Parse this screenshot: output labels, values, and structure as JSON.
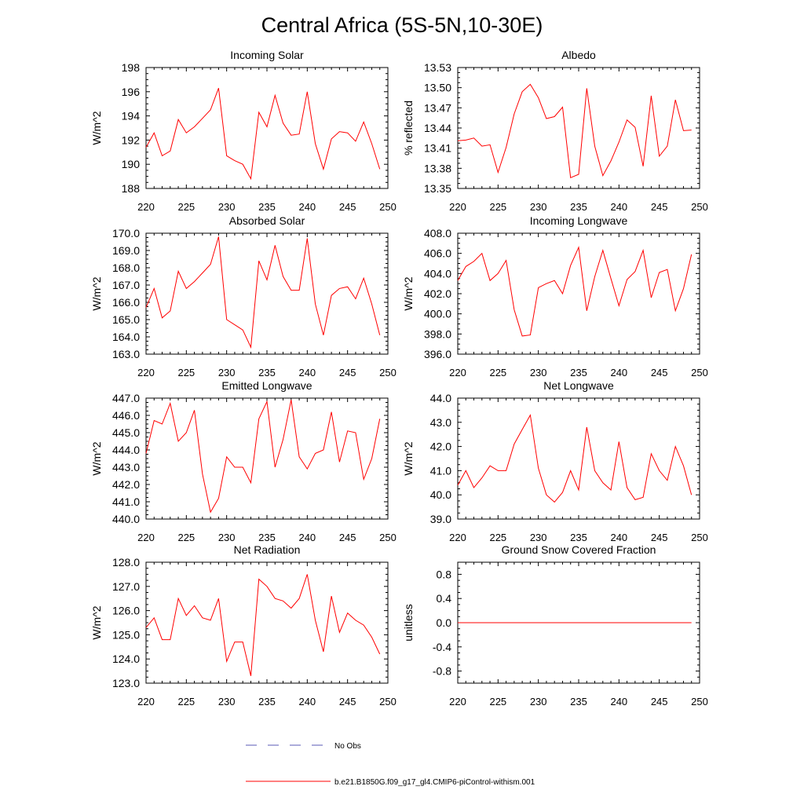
{
  "figure": {
    "title": "Central Africa (5S-5N,10-30E)",
    "line_color": "#ff0000",
    "obs_color": "#5a5ab4"
  },
  "legend": {
    "obs_label": "No Obs",
    "model_label": "b.e21.B1850G.f09_g17_gl4.CMIP6-piControl-withism.001"
  },
  "chart_data": [
    {
      "type": "line",
      "title": "Incoming Solar",
      "xlabel": "",
      "ylabel": "W/m^2",
      "xlim": [
        220,
        250
      ],
      "ylim": [
        188,
        198
      ],
      "x_ticks": [
        "220",
        "225",
        "230",
        "235",
        "240",
        "245",
        "250"
      ],
      "y_ticks": [
        "188",
        "190",
        "192",
        "194",
        "196",
        "198"
      ],
      "x": [
        220,
        221,
        222,
        223,
        224,
        225,
        226,
        227,
        228,
        229,
        230,
        231,
        232,
        233,
        234,
        235,
        236,
        237,
        238,
        239,
        240,
        241,
        242,
        243,
        244,
        245,
        246,
        247,
        248,
        249
      ],
      "series": [
        {
          "name": "b.e21.B1850G.f09_g17_gl4.CMIP6-piControl-withism.001",
          "values": [
            191.4,
            192.6,
            190.7,
            191.1,
            193.7,
            192.6,
            193.1,
            193.8,
            194.5,
            196.3,
            190.7,
            190.3,
            190.0,
            188.8,
            194.3,
            193.1,
            195.7,
            193.4,
            192.4,
            192.5,
            196.0,
            191.7,
            189.6,
            192.1,
            192.7,
            192.6,
            191.9,
            193.5,
            191.7,
            189.6
          ]
        }
      ]
    },
    {
      "type": "line",
      "title": "Albedo",
      "xlabel": "",
      "ylabel": "% reflected",
      "xlim": [
        220,
        250
      ],
      "ylim": [
        13.35,
        13.53
      ],
      "x_ticks": [
        "220",
        "225",
        "230",
        "235",
        "240",
        "245",
        "250"
      ],
      "y_ticks": [
        "13.35",
        "13.38",
        "13.41",
        "13.44",
        "13.47",
        "13.50",
        "13.53"
      ],
      "x": [
        220,
        221,
        222,
        223,
        224,
        225,
        226,
        227,
        228,
        229,
        230,
        231,
        232,
        233,
        234,
        235,
        236,
        237,
        238,
        239,
        240,
        241,
        242,
        243,
        244,
        245,
        246,
        247,
        248,
        249
      ],
      "series": [
        {
          "name": "b.e21.B1850G.f09_g17_gl4.CMIP6-piControl-withism.001",
          "values": [
            13.421,
            13.422,
            13.425,
            13.413,
            13.415,
            13.374,
            13.411,
            13.461,
            13.494,
            13.505,
            13.485,
            13.454,
            13.457,
            13.471,
            13.366,
            13.371,
            13.499,
            13.413,
            13.369,
            13.391,
            13.419,
            13.452,
            13.441,
            13.383,
            13.488,
            13.398,
            13.413,
            13.482,
            13.436,
            13.437
          ]
        }
      ]
    },
    {
      "type": "line",
      "title": "Absorbed Solar",
      "xlabel": "",
      "ylabel": "W/m^2",
      "xlim": [
        220,
        250
      ],
      "ylim": [
        163,
        170
      ],
      "x_ticks": [
        "220",
        "225",
        "230",
        "235",
        "240",
        "245",
        "250"
      ],
      "y_ticks": [
        "163.0",
        "164.0",
        "165.0",
        "166.0",
        "167.0",
        "168.0",
        "169.0",
        "170.0"
      ],
      "x": [
        220,
        221,
        222,
        223,
        224,
        225,
        226,
        227,
        228,
        229,
        230,
        231,
        232,
        233,
        234,
        235,
        236,
        237,
        238,
        239,
        240,
        241,
        242,
        243,
        244,
        245,
        246,
        247,
        248,
        249
      ],
      "series": [
        {
          "name": "b.e21.B1850G.f09_g17_gl4.CMIP6-piControl-withism.001",
          "values": [
            165.7,
            166.8,
            165.1,
            165.5,
            167.8,
            166.8,
            167.2,
            167.7,
            168.2,
            169.8,
            165.0,
            164.7,
            164.4,
            163.4,
            168.4,
            167.3,
            169.3,
            167.5,
            166.7,
            166.7,
            169.7,
            165.9,
            164.1,
            166.4,
            166.8,
            166.9,
            166.2,
            167.4,
            165.9,
            164.1
          ]
        }
      ]
    },
    {
      "type": "line",
      "title": "Incoming Longwave",
      "xlabel": "",
      "ylabel": "W/m^2",
      "xlim": [
        220,
        250
      ],
      "ylim": [
        396,
        408
      ],
      "x_ticks": [
        "220",
        "225",
        "230",
        "235",
        "240",
        "245",
        "250"
      ],
      "y_ticks": [
        "396.0",
        "398.0",
        "400.0",
        "402.0",
        "404.0",
        "406.0",
        "408.0"
      ],
      "x": [
        220,
        221,
        222,
        223,
        224,
        225,
        226,
        227,
        228,
        229,
        230,
        231,
        232,
        233,
        234,
        235,
        236,
        237,
        238,
        239,
        240,
        241,
        242,
        243,
        244,
        245,
        246,
        247,
        248,
        249
      ],
      "series": [
        {
          "name": "b.e21.B1850G.f09_g17_gl4.CMIP6-piControl-withism.001",
          "values": [
            403.3,
            404.7,
            405.2,
            406.0,
            403.3,
            404.0,
            405.3,
            400.4,
            397.8,
            397.9,
            402.6,
            403.0,
            403.3,
            402.0,
            404.8,
            406.6,
            400.3,
            403.7,
            406.3,
            403.5,
            400.8,
            403.4,
            404.2,
            406.3,
            401.6,
            404.1,
            404.4,
            400.3,
            402.5,
            405.9
          ]
        }
      ]
    },
    {
      "type": "line",
      "title": "Emitted Longwave",
      "xlabel": "",
      "ylabel": "W/m^2",
      "xlim": [
        220,
        250
      ],
      "ylim": [
        440,
        447
      ],
      "x_ticks": [
        "220",
        "225",
        "230",
        "235",
        "240",
        "245",
        "250"
      ],
      "y_ticks": [
        "440.0",
        "441.0",
        "442.0",
        "443.0",
        "444.0",
        "445.0",
        "446.0",
        "447.0"
      ],
      "x": [
        220,
        221,
        222,
        223,
        224,
        225,
        226,
        227,
        228,
        229,
        230,
        231,
        232,
        233,
        234,
        235,
        236,
        237,
        238,
        239,
        240,
        241,
        242,
        243,
        244,
        245,
        246,
        247,
        248,
        249
      ],
      "series": [
        {
          "name": "b.e21.B1850G.f09_g17_gl4.CMIP6-piControl-withism.001",
          "values": [
            443.8,
            445.7,
            445.5,
            446.7,
            444.5,
            445.0,
            446.3,
            442.6,
            440.4,
            441.2,
            443.6,
            443.0,
            443.0,
            442.1,
            445.8,
            446.8,
            443.0,
            444.6,
            446.9,
            443.6,
            442.9,
            443.8,
            444.0,
            446.2,
            443.3,
            445.1,
            445.0,
            442.3,
            443.5,
            445.8
          ]
        }
      ]
    },
    {
      "type": "line",
      "title": "Net Longwave",
      "xlabel": "",
      "ylabel": "W/m^2",
      "xlim": [
        220,
        250
      ],
      "ylim": [
        39,
        44
      ],
      "x_ticks": [
        "220",
        "225",
        "230",
        "235",
        "240",
        "245",
        "250"
      ],
      "y_ticks": [
        "39.0",
        "40.0",
        "41.0",
        "42.0",
        "43.0",
        "44.0"
      ],
      "x": [
        220,
        221,
        222,
        223,
        224,
        225,
        226,
        227,
        228,
        229,
        230,
        231,
        232,
        233,
        234,
        235,
        236,
        237,
        238,
        239,
        240,
        241,
        242,
        243,
        244,
        245,
        246,
        247,
        248,
        249
      ],
      "series": [
        {
          "name": "b.e21.B1850G.f09_g17_gl4.CMIP6-piControl-withism.001",
          "values": [
            40.4,
            41.0,
            40.3,
            40.7,
            41.2,
            41.0,
            41.0,
            42.1,
            42.7,
            43.3,
            41.1,
            40.0,
            39.7,
            40.1,
            41.0,
            40.2,
            42.8,
            41.0,
            40.5,
            40.2,
            42.2,
            40.3,
            39.8,
            39.9,
            41.7,
            41.0,
            40.6,
            42.0,
            41.2,
            40.0
          ]
        }
      ]
    },
    {
      "type": "line",
      "title": "Net Radiation",
      "xlabel": "",
      "ylabel": "W/m^2",
      "xlim": [
        220,
        250
      ],
      "ylim": [
        123,
        128
      ],
      "x_ticks": [
        "220",
        "225",
        "230",
        "235",
        "240",
        "245",
        "250"
      ],
      "y_ticks": [
        "123.0",
        "124.0",
        "125.0",
        "126.0",
        "127.0",
        "128.0"
      ],
      "x": [
        220,
        221,
        222,
        223,
        224,
        225,
        226,
        227,
        228,
        229,
        230,
        231,
        232,
        233,
        234,
        235,
        236,
        237,
        238,
        239,
        240,
        241,
        242,
        243,
        244,
        245,
        246,
        247,
        248,
        249
      ],
      "series": [
        {
          "name": "b.e21.B1850G.f09_g17_gl4.CMIP6-piControl-withism.001",
          "values": [
            125.3,
            125.7,
            124.8,
            124.8,
            126.5,
            125.8,
            126.2,
            125.7,
            125.6,
            126.5,
            123.9,
            124.7,
            124.7,
            123.3,
            127.3,
            127.0,
            126.5,
            126.4,
            126.1,
            126.5,
            127.5,
            125.6,
            124.3,
            126.6,
            125.1,
            125.9,
            125.6,
            125.4,
            124.9,
            124.2
          ]
        }
      ]
    },
    {
      "type": "line",
      "title": "Ground Snow Covered Fraction",
      "xlabel": "",
      "ylabel": "unitless",
      "xlim": [
        220,
        250
      ],
      "ylim": [
        -1,
        1
      ],
      "x_ticks": [
        "220",
        "225",
        "230",
        "235",
        "240",
        "245",
        "250"
      ],
      "y_ticks": [
        "-0.8",
        "-0.4",
        "0.0",
        "0.4",
        "0.8"
      ],
      "x": [
        220,
        221,
        222,
        223,
        224,
        225,
        226,
        227,
        228,
        229,
        230,
        231,
        232,
        233,
        234,
        235,
        236,
        237,
        238,
        239,
        240,
        241,
        242,
        243,
        244,
        245,
        246,
        247,
        248,
        249
      ],
      "series": [
        {
          "name": "b.e21.B1850G.f09_g17_gl4.CMIP6-piControl-withism.001",
          "values": [
            0,
            0,
            0,
            0,
            0,
            0,
            0,
            0,
            0,
            0,
            0,
            0,
            0,
            0,
            0,
            0,
            0,
            0,
            0,
            0,
            0,
            0,
            0,
            0,
            0,
            0,
            0,
            0,
            0,
            0
          ]
        }
      ]
    }
  ]
}
